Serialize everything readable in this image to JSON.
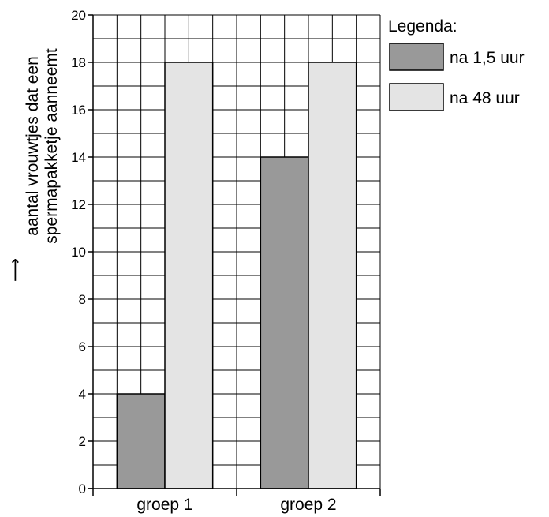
{
  "chart_data": {
    "type": "bar",
    "categories": [
      "groep 1",
      "groep 2"
    ],
    "series": [
      {
        "name": "na 1,5 uur",
        "values": [
          4,
          14
        ],
        "color": "#999999"
      },
      {
        "name": "na 48 uur",
        "values": [
          18,
          18
        ],
        "color": "#e4e4e4"
      }
    ],
    "ylabel_lines": [
      "aantal vrouwtjes dat een",
      "spermapakketje aanneemt"
    ],
    "ylabel_arrow": "⟶",
    "ylim": [
      0,
      20
    ],
    "yticks": [
      0,
      2,
      4,
      6,
      8,
      10,
      12,
      14,
      16,
      18,
      20
    ],
    "grid": true,
    "legend": {
      "title": "Legenda:",
      "placement": "right"
    }
  }
}
